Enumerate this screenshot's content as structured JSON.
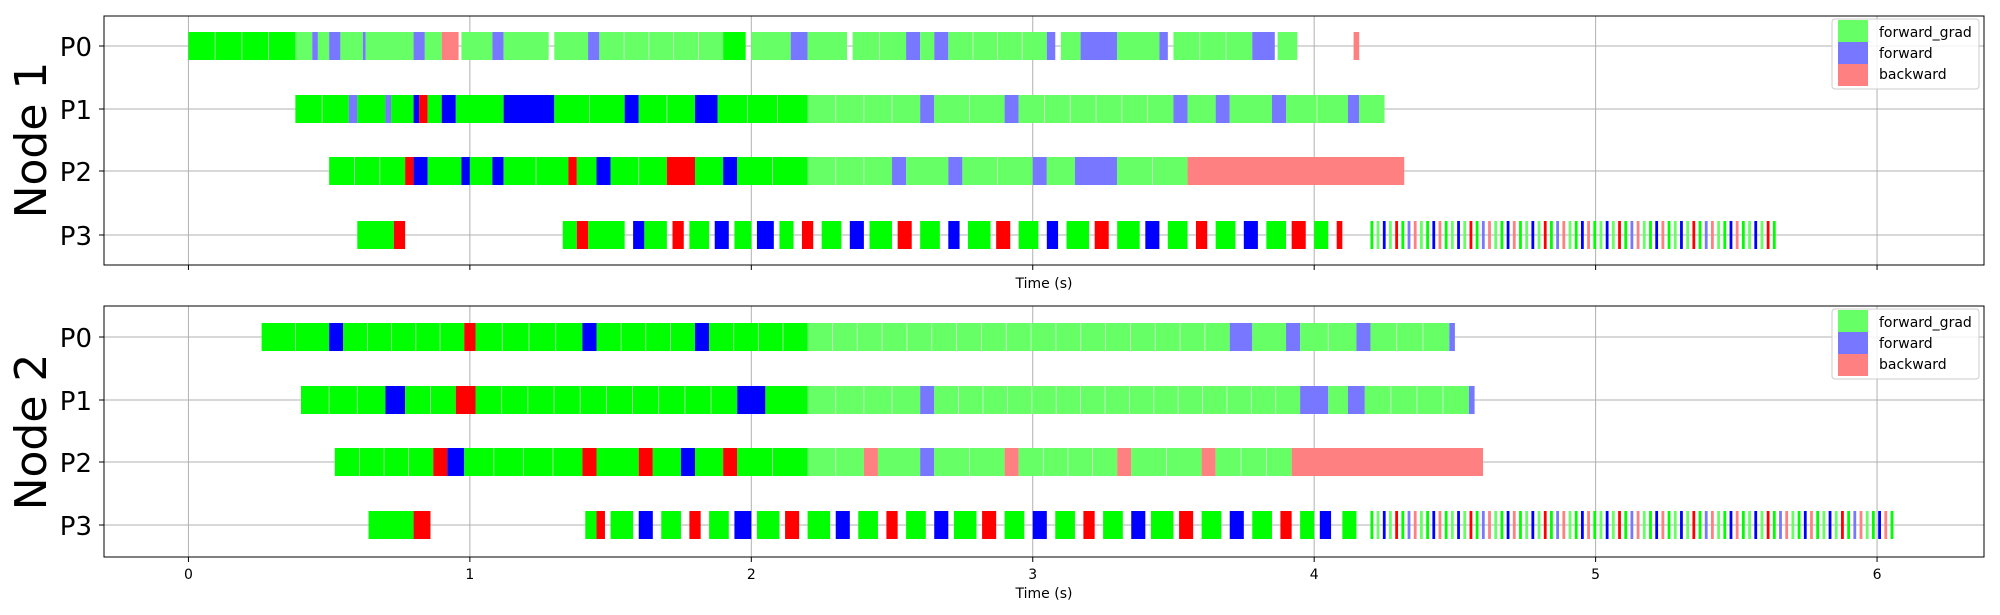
{
  "colors": {
    "forward_grad_bright": "#00ff00",
    "forward_grad": "#66ff66",
    "forward_bright": "#0000ff",
    "forward": "#7777ff",
    "backward_bright": "#ff0000",
    "backward": "#ff8080",
    "grid": "#b0b0b0"
  },
  "chart_data": [
    {
      "type": "gantt",
      "node_label": "Node 1",
      "xlabel": "Time (s)",
      "xlim": [
        -0.3,
        6.38
      ],
      "xticks": [
        0,
        1,
        2,
        3,
        4,
        5,
        6
      ],
      "show_xtick_labels": false,
      "rows": [
        "P0",
        "P1",
        "P2",
        "P3"
      ],
      "grid": true,
      "legend": {
        "placement": "top-right",
        "entries": [
          {
            "label": "forward_grad",
            "color_key": "forward_grad"
          },
          {
            "label": "forward",
            "color_key": "forward"
          },
          {
            "label": "backward",
            "color_key": "backward"
          }
        ]
      },
      "segments": {
        "P0": [
          [
            0.0,
            0.38,
            "G"
          ],
          [
            0.38,
            0.44,
            "g"
          ],
          [
            0.44,
            0.46,
            "f"
          ],
          [
            0.46,
            0.5,
            "g"
          ],
          [
            0.5,
            0.54,
            "f"
          ],
          [
            0.54,
            0.62,
            "g"
          ],
          [
            0.62,
            0.63,
            "f"
          ],
          [
            0.63,
            0.8,
            "g"
          ],
          [
            0.8,
            0.84,
            "f"
          ],
          [
            0.84,
            0.9,
            "g"
          ],
          [
            0.9,
            0.96,
            "b"
          ],
          [
            0.97,
            1.08,
            "g"
          ],
          [
            1.08,
            1.12,
            "f"
          ],
          [
            1.12,
            1.28,
            "g"
          ],
          [
            1.3,
            1.42,
            "g"
          ],
          [
            1.42,
            1.46,
            "f"
          ],
          [
            1.46,
            1.9,
            "g"
          ],
          [
            1.9,
            1.98,
            "G"
          ],
          [
            2.0,
            2.14,
            "g"
          ],
          [
            2.14,
            2.2,
            "f"
          ],
          [
            2.2,
            2.34,
            "g"
          ],
          [
            2.36,
            2.55,
            "g"
          ],
          [
            2.55,
            2.6,
            "f"
          ],
          [
            2.6,
            2.65,
            "g"
          ],
          [
            2.65,
            2.7,
            "f"
          ],
          [
            2.7,
            3.05,
            "g"
          ],
          [
            3.05,
            3.08,
            "f"
          ],
          [
            3.1,
            3.17,
            "g"
          ],
          [
            3.17,
            3.3,
            "f"
          ],
          [
            3.3,
            3.45,
            "g"
          ],
          [
            3.45,
            3.48,
            "f"
          ],
          [
            3.5,
            3.78,
            "g"
          ],
          [
            3.78,
            3.86,
            "f"
          ],
          [
            3.87,
            3.94,
            "g"
          ],
          [
            4.14,
            4.16,
            "b"
          ]
        ],
        "P1": [
          [
            0.38,
            0.57,
            "G"
          ],
          [
            0.57,
            0.6,
            "f"
          ],
          [
            0.6,
            0.7,
            "G"
          ],
          [
            0.7,
            0.72,
            "f"
          ],
          [
            0.72,
            0.8,
            "G"
          ],
          [
            0.8,
            0.82,
            "F"
          ],
          [
            0.82,
            0.85,
            "B"
          ],
          [
            0.85,
            0.9,
            "G"
          ],
          [
            0.9,
            0.95,
            "F"
          ],
          [
            0.95,
            1.12,
            "G"
          ],
          [
            1.12,
            1.3,
            "F"
          ],
          [
            1.3,
            1.55,
            "G"
          ],
          [
            1.55,
            1.6,
            "F"
          ],
          [
            1.6,
            1.8,
            "G"
          ],
          [
            1.8,
            1.88,
            "F"
          ],
          [
            1.88,
            2.2,
            "G"
          ],
          [
            2.2,
            2.6,
            "g"
          ],
          [
            2.6,
            2.65,
            "f"
          ],
          [
            2.65,
            2.9,
            "g"
          ],
          [
            2.9,
            2.95,
            "f"
          ],
          [
            2.95,
            3.5,
            "g"
          ],
          [
            3.5,
            3.55,
            "f"
          ],
          [
            3.55,
            3.65,
            "g"
          ],
          [
            3.65,
            3.7,
            "f"
          ],
          [
            3.7,
            3.85,
            "g"
          ],
          [
            3.85,
            3.9,
            "f"
          ],
          [
            3.9,
            4.12,
            "g"
          ],
          [
            4.12,
            4.16,
            "f"
          ],
          [
            4.16,
            4.25,
            "g"
          ]
        ],
        "P2": [
          [
            0.5,
            0.77,
            "G"
          ],
          [
            0.77,
            0.8,
            "B"
          ],
          [
            0.8,
            0.85,
            "F"
          ],
          [
            0.85,
            0.97,
            "G"
          ],
          [
            0.97,
            1.0,
            "F"
          ],
          [
            1.0,
            1.08,
            "G"
          ],
          [
            1.08,
            1.12,
            "F"
          ],
          [
            1.12,
            1.35,
            "G"
          ],
          [
            1.35,
            1.38,
            "B"
          ],
          [
            1.38,
            1.45,
            "G"
          ],
          [
            1.45,
            1.5,
            "F"
          ],
          [
            1.5,
            1.7,
            "G"
          ],
          [
            1.7,
            1.8,
            "B"
          ],
          [
            1.8,
            1.9,
            "G"
          ],
          [
            1.9,
            1.95,
            "F"
          ],
          [
            1.95,
            2.2,
            "G"
          ],
          [
            2.2,
            2.5,
            "g"
          ],
          [
            2.5,
            2.55,
            "f"
          ],
          [
            2.55,
            2.7,
            "g"
          ],
          [
            2.7,
            2.75,
            "f"
          ],
          [
            2.75,
            3.0,
            "g"
          ],
          [
            3.0,
            3.05,
            "f"
          ],
          [
            3.05,
            3.15,
            "g"
          ],
          [
            3.15,
            3.3,
            "f"
          ],
          [
            3.3,
            3.55,
            "g"
          ],
          [
            3.55,
            4.32,
            "b"
          ]
        ],
        "P3": [
          [
            0.6,
            0.73,
            "G"
          ],
          [
            0.73,
            0.77,
            "B"
          ],
          [
            1.33,
            1.38,
            "G"
          ],
          [
            1.38,
            1.42,
            "B"
          ],
          [
            1.42,
            1.55,
            "G"
          ],
          [
            1.58,
            1.62,
            "F"
          ],
          [
            1.62,
            1.7,
            "G"
          ],
          [
            1.72,
            1.76,
            "B"
          ],
          [
            1.78,
            1.85,
            "G"
          ],
          [
            1.87,
            1.92,
            "F"
          ],
          [
            1.94,
            2.0,
            "G"
          ],
          [
            2.02,
            2.08,
            "F"
          ],
          [
            2.1,
            2.15,
            "G"
          ],
          [
            2.18,
            2.22,
            "B"
          ],
          [
            2.25,
            2.32,
            "G"
          ],
          [
            2.35,
            2.4,
            "F"
          ],
          [
            2.42,
            2.5,
            "G"
          ],
          [
            2.52,
            2.57,
            "B"
          ],
          [
            2.6,
            2.67,
            "G"
          ],
          [
            2.7,
            2.74,
            "F"
          ],
          [
            2.77,
            2.85,
            "G"
          ],
          [
            2.87,
            2.92,
            "B"
          ],
          [
            2.95,
            3.02,
            "G"
          ],
          [
            3.05,
            3.09,
            "F"
          ],
          [
            3.12,
            3.2,
            "G"
          ],
          [
            3.22,
            3.27,
            "B"
          ],
          [
            3.3,
            3.38,
            "G"
          ],
          [
            3.4,
            3.45,
            "F"
          ],
          [
            3.48,
            3.55,
            "G"
          ],
          [
            3.58,
            3.62,
            "B"
          ],
          [
            3.65,
            3.72,
            "G"
          ],
          [
            3.75,
            3.8,
            "F"
          ],
          [
            3.83,
            3.9,
            "G"
          ],
          [
            3.92,
            3.97,
            "B"
          ],
          [
            4.0,
            4.05,
            "G"
          ],
          [
            4.08,
            4.1,
            "B"
          ],
          [
            4.2,
            5.65,
            "M"
          ]
        ]
      }
    },
    {
      "type": "gantt",
      "node_label": "Node 2",
      "xlabel": "Time (s)",
      "xlim": [
        -0.3,
        6.38
      ],
      "xticks": [
        0,
        1,
        2,
        3,
        4,
        5,
        6
      ],
      "show_xtick_labels": true,
      "rows": [
        "P0",
        "P1",
        "P2",
        "P3"
      ],
      "grid": true,
      "legend": {
        "placement": "top-right",
        "entries": [
          {
            "label": "forward_grad",
            "color_key": "forward_grad"
          },
          {
            "label": "forward",
            "color_key": "forward"
          },
          {
            "label": "backward",
            "color_key": "backward"
          }
        ]
      },
      "segments": {
        "P0": [
          [
            0.26,
            0.5,
            "G"
          ],
          [
            0.5,
            0.55,
            "F"
          ],
          [
            0.55,
            0.98,
            "G"
          ],
          [
            0.98,
            1.02,
            "B"
          ],
          [
            1.02,
            1.4,
            "G"
          ],
          [
            1.4,
            1.45,
            "F"
          ],
          [
            1.45,
            1.8,
            "G"
          ],
          [
            1.8,
            1.85,
            "F"
          ],
          [
            1.85,
            2.2,
            "G"
          ],
          [
            2.2,
            3.7,
            "g"
          ],
          [
            3.7,
            3.78,
            "f"
          ],
          [
            3.78,
            3.9,
            "g"
          ],
          [
            3.9,
            3.95,
            "f"
          ],
          [
            3.95,
            4.15,
            "g"
          ],
          [
            4.15,
            4.2,
            "f"
          ],
          [
            4.2,
            4.48,
            "g"
          ],
          [
            4.48,
            4.5,
            "f"
          ]
        ],
        "P1": [
          [
            0.4,
            0.7,
            "G"
          ],
          [
            0.7,
            0.77,
            "F"
          ],
          [
            0.77,
            0.95,
            "G"
          ],
          [
            0.95,
            1.02,
            "B"
          ],
          [
            1.02,
            1.95,
            "G"
          ],
          [
            1.95,
            2.05,
            "F"
          ],
          [
            2.05,
            2.2,
            "G"
          ],
          [
            2.2,
            2.6,
            "g"
          ],
          [
            2.6,
            2.65,
            "f"
          ],
          [
            2.65,
            3.95,
            "g"
          ],
          [
            3.95,
            4.05,
            "f"
          ],
          [
            4.05,
            4.12,
            "g"
          ],
          [
            4.12,
            4.18,
            "f"
          ],
          [
            4.18,
            4.55,
            "g"
          ],
          [
            4.55,
            4.57,
            "f"
          ]
        ],
        "P2": [
          [
            0.52,
            0.87,
            "G"
          ],
          [
            0.87,
            0.92,
            "B"
          ],
          [
            0.92,
            0.98,
            "F"
          ],
          [
            0.98,
            1.4,
            "G"
          ],
          [
            1.4,
            1.45,
            "B"
          ],
          [
            1.45,
            1.6,
            "G"
          ],
          [
            1.6,
            1.65,
            "B"
          ],
          [
            1.65,
            1.75,
            "G"
          ],
          [
            1.75,
            1.8,
            "F"
          ],
          [
            1.8,
            1.9,
            "G"
          ],
          [
            1.9,
            1.95,
            "B"
          ],
          [
            1.95,
            2.2,
            "G"
          ],
          [
            2.2,
            2.4,
            "g"
          ],
          [
            2.4,
            2.45,
            "b"
          ],
          [
            2.45,
            2.6,
            "g"
          ],
          [
            2.6,
            2.65,
            "f"
          ],
          [
            2.65,
            2.9,
            "g"
          ],
          [
            2.9,
            2.95,
            "b"
          ],
          [
            2.95,
            3.3,
            "g"
          ],
          [
            3.3,
            3.35,
            "b"
          ],
          [
            3.35,
            3.6,
            "g"
          ],
          [
            3.6,
            3.65,
            "b"
          ],
          [
            3.65,
            3.92,
            "g"
          ],
          [
            3.92,
            4.6,
            "b"
          ]
        ],
        "P3": [
          [
            0.64,
            0.8,
            "G"
          ],
          [
            0.8,
            0.86,
            "B"
          ],
          [
            1.41,
            1.45,
            "G"
          ],
          [
            1.45,
            1.48,
            "B"
          ],
          [
            1.5,
            1.58,
            "G"
          ],
          [
            1.6,
            1.65,
            "F"
          ],
          [
            1.68,
            1.75,
            "G"
          ],
          [
            1.78,
            1.82,
            "B"
          ],
          [
            1.85,
            1.92,
            "G"
          ],
          [
            1.94,
            2.0,
            "F"
          ],
          [
            2.02,
            2.1,
            "G"
          ],
          [
            2.12,
            2.17,
            "B"
          ],
          [
            2.2,
            2.28,
            "G"
          ],
          [
            2.3,
            2.35,
            "F"
          ],
          [
            2.38,
            2.45,
            "G"
          ],
          [
            2.48,
            2.52,
            "B"
          ],
          [
            2.55,
            2.62,
            "G"
          ],
          [
            2.65,
            2.7,
            "F"
          ],
          [
            2.72,
            2.8,
            "G"
          ],
          [
            2.82,
            2.87,
            "B"
          ],
          [
            2.9,
            2.97,
            "G"
          ],
          [
            3.0,
            3.05,
            "F"
          ],
          [
            3.08,
            3.15,
            "G"
          ],
          [
            3.18,
            3.22,
            "B"
          ],
          [
            3.25,
            3.32,
            "G"
          ],
          [
            3.35,
            3.4,
            "F"
          ],
          [
            3.42,
            3.5,
            "G"
          ],
          [
            3.52,
            3.57,
            "B"
          ],
          [
            3.6,
            3.67,
            "G"
          ],
          [
            3.7,
            3.75,
            "F"
          ],
          [
            3.78,
            3.85,
            "G"
          ],
          [
            3.88,
            3.92,
            "B"
          ],
          [
            3.95,
            4.0,
            "G"
          ],
          [
            4.02,
            4.06,
            "F"
          ],
          [
            4.1,
            4.15,
            "G"
          ],
          [
            4.2,
            6.07,
            "M"
          ]
        ]
      }
    }
  ]
}
